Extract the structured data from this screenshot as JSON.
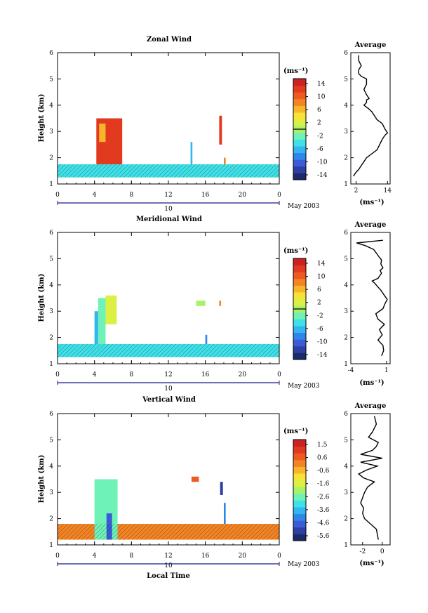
{
  "chart_data": [
    {
      "type": "heatmap",
      "title": "Zonal Wind",
      "ylabel": "Height (km)",
      "ylim": [
        1,
        6
      ],
      "yticks": [
        "1",
        "2",
        "3",
        "4",
        "5",
        "6"
      ],
      "xlim": [
        0,
        24
      ],
      "xticks": [
        "0",
        "4",
        "8",
        "12",
        "16",
        "20",
        "0"
      ],
      "date_day": "10",
      "date_label": "May 2003",
      "colorbar": {
        "unit": "(ms⁻¹)",
        "ticks": [
          "14",
          "10",
          "6",
          "2",
          "-2",
          "-6",
          "-10",
          "-14"
        ],
        "zero_line": "2",
        "range": [
          -16,
          16
        ]
      },
      "bands": [
        {
          "x0": 0,
          "x1": 24,
          "y0": 1.25,
          "y1": 1.75,
          "value": -4
        },
        {
          "x0": 4.2,
          "x1": 7.0,
          "y0": 1.75,
          "y1": 3.5,
          "value": 13
        },
        {
          "x0": 4.5,
          "x1": 5.2,
          "y0": 2.6,
          "y1": 3.3,
          "value": 6
        },
        {
          "x0": 14.4,
          "x1": 14.6,
          "y0": 1.75,
          "y1": 2.6,
          "value": -6
        },
        {
          "x0": 17.5,
          "x1": 17.8,
          "y0": 2.5,
          "y1": 3.6,
          "value": 13
        },
        {
          "x0": 18.0,
          "x1": 18.2,
          "y0": 1.75,
          "y1": 2.0,
          "value": 8
        }
      ],
      "average": {
        "title": "Average",
        "xlabel": "(ms⁻¹)",
        "xticks": [
          "2",
          "14"
        ],
        "xlim": [
          0,
          15
        ],
        "x": [
          1,
          2,
          3,
          4,
          5,
          6,
          8,
          10,
          11,
          12,
          13,
          14,
          13,
          12,
          10,
          9,
          8,
          7,
          5,
          6,
          6,
          7,
          6,
          5,
          6,
          6,
          4,
          3,
          3,
          4,
          3,
          3
        ],
        "y": [
          1.3,
          1.45,
          1.55,
          1.7,
          1.85,
          2.0,
          2.15,
          2.3,
          2.5,
          2.7,
          2.85,
          2.95,
          3.1,
          3.3,
          3.45,
          3.6,
          3.75,
          3.85,
          4.0,
          4.1,
          4.2,
          4.25,
          4.4,
          4.6,
          4.8,
          5.0,
          5.1,
          5.2,
          5.35,
          5.5,
          5.7,
          5.9
        ]
      }
    },
    {
      "type": "heatmap",
      "title": "Meridional Wind",
      "ylabel": "Height (km)",
      "ylim": [
        1,
        6
      ],
      "yticks": [
        "1",
        "2",
        "3",
        "4",
        "5",
        "6"
      ],
      "xlim": [
        0,
        24
      ],
      "xticks": [
        "0",
        "4",
        "8",
        "12",
        "16",
        "20",
        "0"
      ],
      "date_day": "10",
      "date_label": "May 2003",
      "colorbar": {
        "unit": "(ms⁻¹)",
        "ticks": [
          "14",
          "10",
          "6",
          "2",
          "-2",
          "-6",
          "-10",
          "-14"
        ],
        "zero_line": "2",
        "range": [
          -16,
          16
        ]
      },
      "bands": [
        {
          "x0": 0,
          "x1": 24,
          "y0": 1.25,
          "y1": 1.75,
          "value": -4
        },
        {
          "x0": 4.0,
          "x1": 4.4,
          "y0": 1.75,
          "y1": 3.0,
          "value": -8
        },
        {
          "x0": 4.4,
          "x1": 5.2,
          "y0": 1.75,
          "y1": 3.5,
          "value": -2
        },
        {
          "x0": 5.2,
          "x1": 6.4,
          "y0": 2.5,
          "y1": 3.6,
          "value": 3
        },
        {
          "x0": 15.0,
          "x1": 16.0,
          "y0": 3.2,
          "y1": 3.4,
          "value": 1
        },
        {
          "x0": 16.0,
          "x1": 16.2,
          "y0": 1.75,
          "y1": 2.1,
          "value": -10
        },
        {
          "x0": 17.5,
          "x1": 17.7,
          "y0": 3.2,
          "y1": 3.4,
          "value": 10
        }
      ],
      "average": {
        "title": "Average",
        "xlabel": "(ms⁻¹)",
        "xticks": [
          "-4",
          "1"
        ],
        "xlim": [
          -4,
          1.5
        ],
        "x": [
          0.3,
          0.6,
          0.5,
          -0.2,
          0.4,
          0.0,
          0.7,
          -0.2,
          -0.5,
          0.5,
          0.8,
          1.1,
          0.7,
          0.2,
          -0.3,
          -0.6,
          -1.0,
          -0.2,
          0.3,
          0.1,
          0.5,
          0.2,
          0.3,
          0.0,
          -0.4,
          -0.8,
          -2.0,
          -3.2,
          0.5
        ],
        "y": [
          1.3,
          1.5,
          1.7,
          1.9,
          2.1,
          2.3,
          2.5,
          2.7,
          2.9,
          3.1,
          3.3,
          3.45,
          3.6,
          3.8,
          3.95,
          4.05,
          4.15,
          4.25,
          4.45,
          4.55,
          4.65,
          4.8,
          4.95,
          5.05,
          5.2,
          5.35,
          5.5,
          5.6,
          5.7
        ]
      }
    },
    {
      "type": "heatmap",
      "title": "Vertical Wind",
      "xlabel": "Local Time",
      "ylabel": "Height (km)",
      "ylim": [
        1,
        6
      ],
      "yticks": [
        "1",
        "2",
        "3",
        "4",
        "5",
        "6"
      ],
      "xlim": [
        0,
        24
      ],
      "xticks": [
        "0",
        "4",
        "8",
        "12",
        "16",
        "20",
        "0"
      ],
      "date_day": "10",
      "date_label": "May 2003",
      "colorbar": {
        "unit": "(ms⁻¹)",
        "ticks": [
          "1.5",
          "0.6",
          "-0.6",
          "-1.6",
          "-2.6",
          "-3.6",
          "-4.6",
          "-5.6"
        ],
        "zero_line": "",
        "range": [
          -6,
          2
        ]
      },
      "bands": [
        {
          "x0": 0,
          "x1": 24,
          "y0": 1.2,
          "y1": 1.8,
          "value": 0.2
        },
        {
          "x0": 4.0,
          "x1": 6.5,
          "y0": 1.2,
          "y1": 3.5,
          "value": -2.6
        },
        {
          "x0": 5.3,
          "x1": 5.9,
          "y0": 1.2,
          "y1": 2.2,
          "value": -5.0
        },
        {
          "x0": 14.5,
          "x1": 15.3,
          "y0": 3.4,
          "y1": 3.6,
          "value": 0.8
        },
        {
          "x0": 17.6,
          "x1": 17.9,
          "y0": 2.9,
          "y1": 3.4,
          "value": -5.5
        },
        {
          "x0": 18.0,
          "x1": 18.2,
          "y0": 1.8,
          "y1": 2.6,
          "value": -4.2
        }
      ],
      "average": {
        "title": "Average",
        "xlabel": "(ms⁻¹)",
        "xticks": [
          "-2",
          "0"
        ],
        "xlim": [
          -3.2,
          0.8
        ],
        "x": [
          -0.4,
          -0.5,
          -0.6,
          -1.2,
          -1.8,
          -2.0,
          -1.9,
          -2.2,
          -2.0,
          -1.8,
          -1.5,
          -0.8,
          -1.9,
          -2.4,
          -1.6,
          -0.5,
          -2.2,
          0.0,
          -2.2,
          -1.0,
          -0.6,
          -0.4,
          -1.4,
          -1.0,
          -0.6,
          -0.8
        ],
        "y": [
          1.2,
          1.4,
          1.6,
          1.8,
          2.0,
          2.2,
          2.4,
          2.6,
          2.8,
          3.0,
          3.2,
          3.4,
          3.55,
          3.7,
          3.85,
          4.0,
          4.15,
          4.3,
          4.45,
          4.6,
          4.75,
          4.9,
          5.1,
          5.3,
          5.6,
          5.9
        ]
      }
    }
  ]
}
